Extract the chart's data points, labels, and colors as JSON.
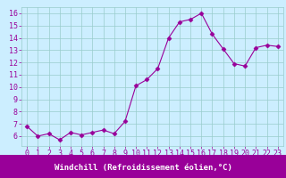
{
  "x": [
    0,
    1,
    2,
    3,
    4,
    5,
    6,
    7,
    8,
    9,
    10,
    11,
    12,
    13,
    14,
    15,
    16,
    17,
    18,
    19,
    20,
    21,
    22,
    23
  ],
  "y": [
    6.8,
    6.0,
    6.2,
    5.7,
    6.3,
    6.1,
    6.3,
    6.5,
    6.2,
    7.2,
    10.1,
    10.6,
    11.5,
    14.0,
    15.3,
    15.5,
    16.0,
    14.3,
    13.1,
    11.9,
    11.7,
    13.2,
    13.4,
    13.3
  ],
  "line_color": "#990099",
  "marker": "D",
  "marker_size": 2.5,
  "background_color": "#cceeff",
  "grid_color": "#99cccc",
  "xlabel": "Windchill (Refroidissement éolien,°C)",
  "xlabel_color": "#990099",
  "xlabel_fontsize": 6.5,
  "tick_color": "#990099",
  "tick_fontsize": 6,
  "ylim": [
    5.2,
    16.5
  ],
  "yticks": [
    6,
    7,
    8,
    9,
    10,
    11,
    12,
    13,
    14,
    15,
    16
  ],
  "xticks": [
    0,
    1,
    2,
    3,
    4,
    5,
    6,
    7,
    8,
    9,
    10,
    11,
    12,
    13,
    14,
    15,
    16,
    17,
    18,
    19,
    20,
    21,
    22,
    23
  ],
  "xlim": [
    -0.5,
    23.5
  ],
  "xaxis_bar_color": "#990099",
  "xaxis_bar_height": 0.13
}
